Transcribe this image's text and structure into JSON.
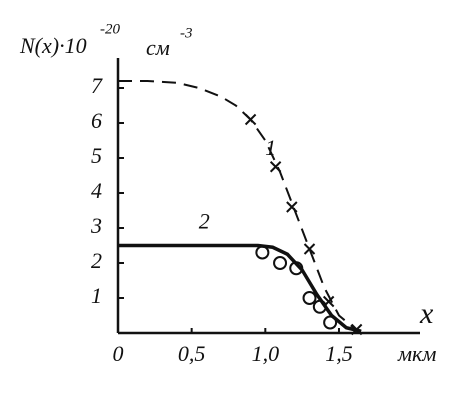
{
  "chart_data": {
    "type": "line",
    "ylabel": {
      "main": "N(x)·10",
      "exp": "-20",
      "unit": "см",
      "unit_exp": "-3"
    },
    "xlabel": "x",
    "xunit": "мкм",
    "xlim": [
      0,
      2.05
    ],
    "ylim": [
      0,
      7.8
    ],
    "xticks": [
      0,
      {
        "value": 0.5,
        "label": "0,5"
      },
      {
        "value": 1,
        "label": "1,0"
      },
      {
        "value": 1.5,
        "label": "1,5"
      }
    ],
    "yticks": [
      1,
      2,
      3,
      4,
      5,
      6,
      7
    ],
    "series": [
      {
        "name": "1",
        "color": "#111111",
        "style": "dashed",
        "x": [
          0,
          0.2,
          0.4,
          0.55,
          0.7,
          0.8,
          0.9,
          1.0,
          1.1,
          1.2,
          1.3,
          1.4,
          1.5,
          1.6,
          1.65
        ],
        "values": [
          7.2,
          7.2,
          7.15,
          7.0,
          6.75,
          6.5,
          6.1,
          5.5,
          4.6,
          3.5,
          2.4,
          1.3,
          0.5,
          0.15,
          0.05
        ]
      },
      {
        "name": "2",
        "color": "#111111",
        "style": "solid",
        "x": [
          0,
          0.4,
          0.8,
          0.95,
          1.05,
          1.15,
          1.25,
          1.35,
          1.45,
          1.55,
          1.65
        ],
        "values": [
          2.5,
          2.5,
          2.5,
          2.5,
          2.45,
          2.25,
          1.8,
          1.1,
          0.5,
          0.15,
          0.05
        ]
      },
      {
        "marker": "cross",
        "color": "#111111",
        "x": [
          0.9,
          1.07,
          1.18,
          1.3,
          1.43,
          1.62
        ],
        "values": [
          6.1,
          4.75,
          3.6,
          2.4,
          0.9,
          0.1
        ]
      },
      {
        "marker": "circle",
        "color": "#111111",
        "x": [
          0.98,
          1.1,
          1.21,
          1.3,
          1.37,
          1.44
        ],
        "values": [
          2.3,
          2.0,
          1.85,
          1.0,
          0.75,
          0.3
        ]
      }
    ]
  }
}
